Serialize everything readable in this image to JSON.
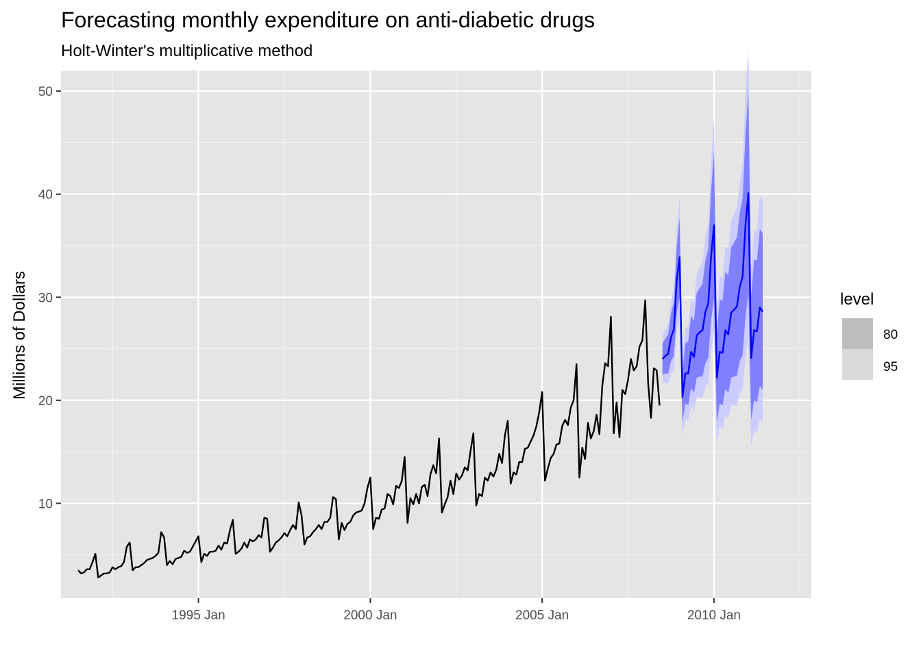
{
  "chart_data": {
    "type": "line",
    "title": "Forecasting monthly expenditure on anti-diabetic drugs",
    "subtitle": "Holt-Winter's multiplicative method",
    "xlabel": "",
    "ylabel": "Millions of Dollars",
    "x_range": [
      1991.0,
      2012.833
    ],
    "ylim": [
      0.8,
      52.0
    ],
    "y_ticks": [
      10,
      20,
      30,
      40,
      50
    ],
    "y_minor_ticks": [
      5,
      15,
      25,
      35,
      45
    ],
    "x_ticks": [
      {
        "label": "1995 Jan",
        "value": 1995.0
      },
      {
        "label": "2000 Jan",
        "value": 2000.0
      },
      {
        "label": "2005 Jan",
        "value": 2005.0
      },
      {
        "label": "2010 Jan",
        "value": 2010.0
      }
    ],
    "x_minor_ticks": [
      1992.5,
      1997.5,
      2002.5,
      2007.5,
      2012.5
    ],
    "grid": true,
    "history": {
      "name": "Observed",
      "color": "#000000",
      "start": 1991.5,
      "step_months": 1,
      "values": [
        3.5,
        3.2,
        3.3,
        3.6,
        3.6,
        4.3,
        5.1,
        2.8,
        3.0,
        3.2,
        3.2,
        3.3,
        3.8,
        3.6,
        3.8,
        3.9,
        4.3,
        5.8,
        6.2,
        3.5,
        3.8,
        3.8,
        4.0,
        4.2,
        4.5,
        4.6,
        4.7,
        4.9,
        5.2,
        7.2,
        6.7,
        4.0,
        4.4,
        4.1,
        4.6,
        4.7,
        4.8,
        5.4,
        5.2,
        5.3,
        5.8,
        6.3,
        6.8,
        4.3,
        5.1,
        4.9,
        5.3,
        5.3,
        5.4,
        5.9,
        5.5,
        6.2,
        6.1,
        7.4,
        8.4,
        5.1,
        5.3,
        5.6,
        6.2,
        5.7,
        6.5,
        6.3,
        6.5,
        6.9,
        6.7,
        8.6,
        8.5,
        5.3,
        5.7,
        6.2,
        6.4,
        6.7,
        7.1,
        6.8,
        7.4,
        7.9,
        7.5,
        10.1,
        8.8,
        6.0,
        6.7,
        6.8,
        7.2,
        7.5,
        7.9,
        7.5,
        8.2,
        8.2,
        8.6,
        10.6,
        10.4,
        6.5,
        8.1,
        7.4,
        8.0,
        8.2,
        8.8,
        9.1,
        9.2,
        9.3,
        10.0,
        11.5,
        12.5,
        7.5,
        8.6,
        8.5,
        9.4,
        9.5,
        10.9,
        10.7,
        9.9,
        11.7,
        11.5,
        12.2,
        14.5,
        8.1,
        10.5,
        9.9,
        10.9,
        10.0,
        11.6,
        11.8,
        10.7,
        12.8,
        13.7,
        12.9,
        16.3,
        9.1,
        9.9,
        10.6,
        12.2,
        10.9,
        12.9,
        12.3,
        12.7,
        13.5,
        13.2,
        15.1,
        16.8,
        9.8,
        10.9,
        10.7,
        12.5,
        12.2,
        13.0,
        12.6,
        13.3,
        14.8,
        13.9,
        16.6,
        18.0,
        11.9,
        13.0,
        12.8,
        14.0,
        14.0,
        15.3,
        15.4,
        16.0,
        16.6,
        17.5,
        18.9,
        20.8,
        12.2,
        13.4,
        14.4,
        14.8,
        15.7,
        15.8,
        17.5,
        18.1,
        17.6,
        19.3,
        20.0,
        23.5,
        12.5,
        15.4,
        14.3,
        17.8,
        16.3,
        17.0,
        18.6,
        16.7,
        21.4,
        23.6,
        23.3,
        28.1,
        16.8,
        19.8,
        16.4,
        21.0,
        20.6,
        22.0,
        24.0,
        22.9,
        23.3,
        25.2,
        25.8,
        29.7,
        21.7,
        18.3,
        23.1,
        22.9,
        19.5
      ]
    },
    "forecast": {
      "name": "Point forecast",
      "color": "#0000ff",
      "start": 2008.5,
      "step_months": 1,
      "mean": [
        24.0,
        24.3,
        24.5,
        26.1,
        26.9,
        31.7,
        33.9,
        20.3,
        22.6,
        22.6,
        24.7,
        24.2,
        26.3,
        26.6,
        26.8,
        28.6,
        29.4,
        34.0,
        37.0,
        22.2,
        24.7,
        24.6,
        26.8,
        26.4,
        28.5,
        28.8,
        29.1,
        31.0,
        32.0,
        37.0,
        40.1,
        24.1,
        26.8,
        26.7,
        29.0,
        28.6
      ],
      "intervals": [
        {
          "level": 80,
          "color": "#8080ff",
          "lower": [
            22.5,
            22.6,
            22.6,
            23.8,
            24.3,
            28.4,
            30.1,
            17.9,
            19.7,
            19.5,
            21.2,
            20.7,
            22.2,
            22.3,
            22.3,
            23.6,
            24.1,
            27.7,
            29.9,
            17.8,
            19.7,
            19.5,
            21.1,
            20.7,
            22.2,
            22.3,
            22.4,
            23.8,
            24.4,
            28.1,
            30.3,
            18.1,
            20.0,
            19.8,
            21.4,
            21.0
          ],
          "upper": [
            25.5,
            26.0,
            26.4,
            28.4,
            29.5,
            35.0,
            37.7,
            22.7,
            25.5,
            25.7,
            28.2,
            27.7,
            30.4,
            30.9,
            31.3,
            33.6,
            34.7,
            40.3,
            44.1,
            26.6,
            29.7,
            29.7,
            32.5,
            32.1,
            34.8,
            35.3,
            35.8,
            38.2,
            39.6,
            45.9,
            49.9,
            30.1,
            33.6,
            33.6,
            36.6,
            36.2
          ]
        },
        {
          "level": 95,
          "color": "#ccccff",
          "lower": [
            21.7,
            21.7,
            21.6,
            22.6,
            22.9,
            26.6,
            28.1,
            16.6,
            18.2,
            18.0,
            19.5,
            19.0,
            20.3,
            20.3,
            20.2,
            21.3,
            21.7,
            24.8,
            26.7,
            15.8,
            17.5,
            17.2,
            18.6,
            18.2,
            19.5,
            19.5,
            19.5,
            20.7,
            21.1,
            24.2,
            26.0,
            15.5,
            17.1,
            16.9,
            18.2,
            17.9
          ],
          "upper": [
            26.3,
            26.9,
            27.4,
            29.6,
            30.9,
            36.8,
            39.7,
            24.0,
            27.0,
            27.2,
            29.9,
            29.4,
            32.3,
            32.9,
            33.4,
            35.9,
            37.1,
            43.2,
            47.3,
            28.6,
            31.9,
            32.0,
            35.0,
            34.6,
            37.5,
            38.1,
            38.7,
            41.3,
            42.9,
            49.8,
            54.2,
            32.7,
            36.5,
            36.5,
            39.8,
            39.3
          ]
        }
      ]
    },
    "legend": {
      "title": "level",
      "position": "right",
      "items": [
        {
          "label": "80",
          "color": "#bebebe"
        },
        {
          "label": "95",
          "color": "#d9d9d9"
        }
      ]
    }
  }
}
